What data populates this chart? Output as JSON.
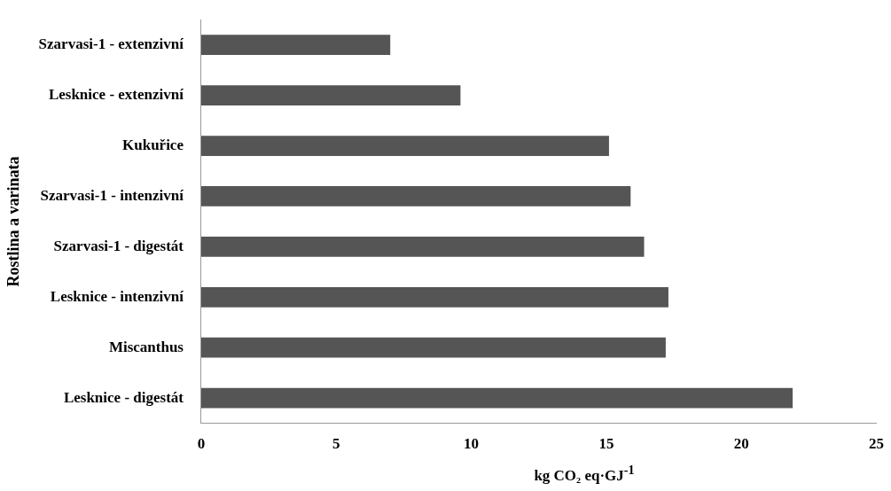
{
  "chart_data": {
    "type": "bar",
    "orientation": "horizontal",
    "xlabel": "kg CO₂ eq·GJ$^{-1}$",
    "ylabel": "Rostlina a varinata",
    "categories": [
      "Szarvasi-1 - extenzivní",
      "Lesknice - extenzivní",
      "Kukuřice",
      "Szarvasi-1 - intenzivní",
      "Szarvasi-1 - digestát",
      "Lesknice - intenzivní",
      "Miscanthus",
      "Lesknice - digestát"
    ],
    "values": [
      7.0,
      9.6,
      15.1,
      15.9,
      16.4,
      17.3,
      17.2,
      21.9
    ],
    "color": "#555555",
    "xlim": [
      0,
      25
    ],
    "xticks": [
      0,
      5,
      10,
      15,
      20,
      25
    ],
    "grid": false,
    "legend": false
  }
}
